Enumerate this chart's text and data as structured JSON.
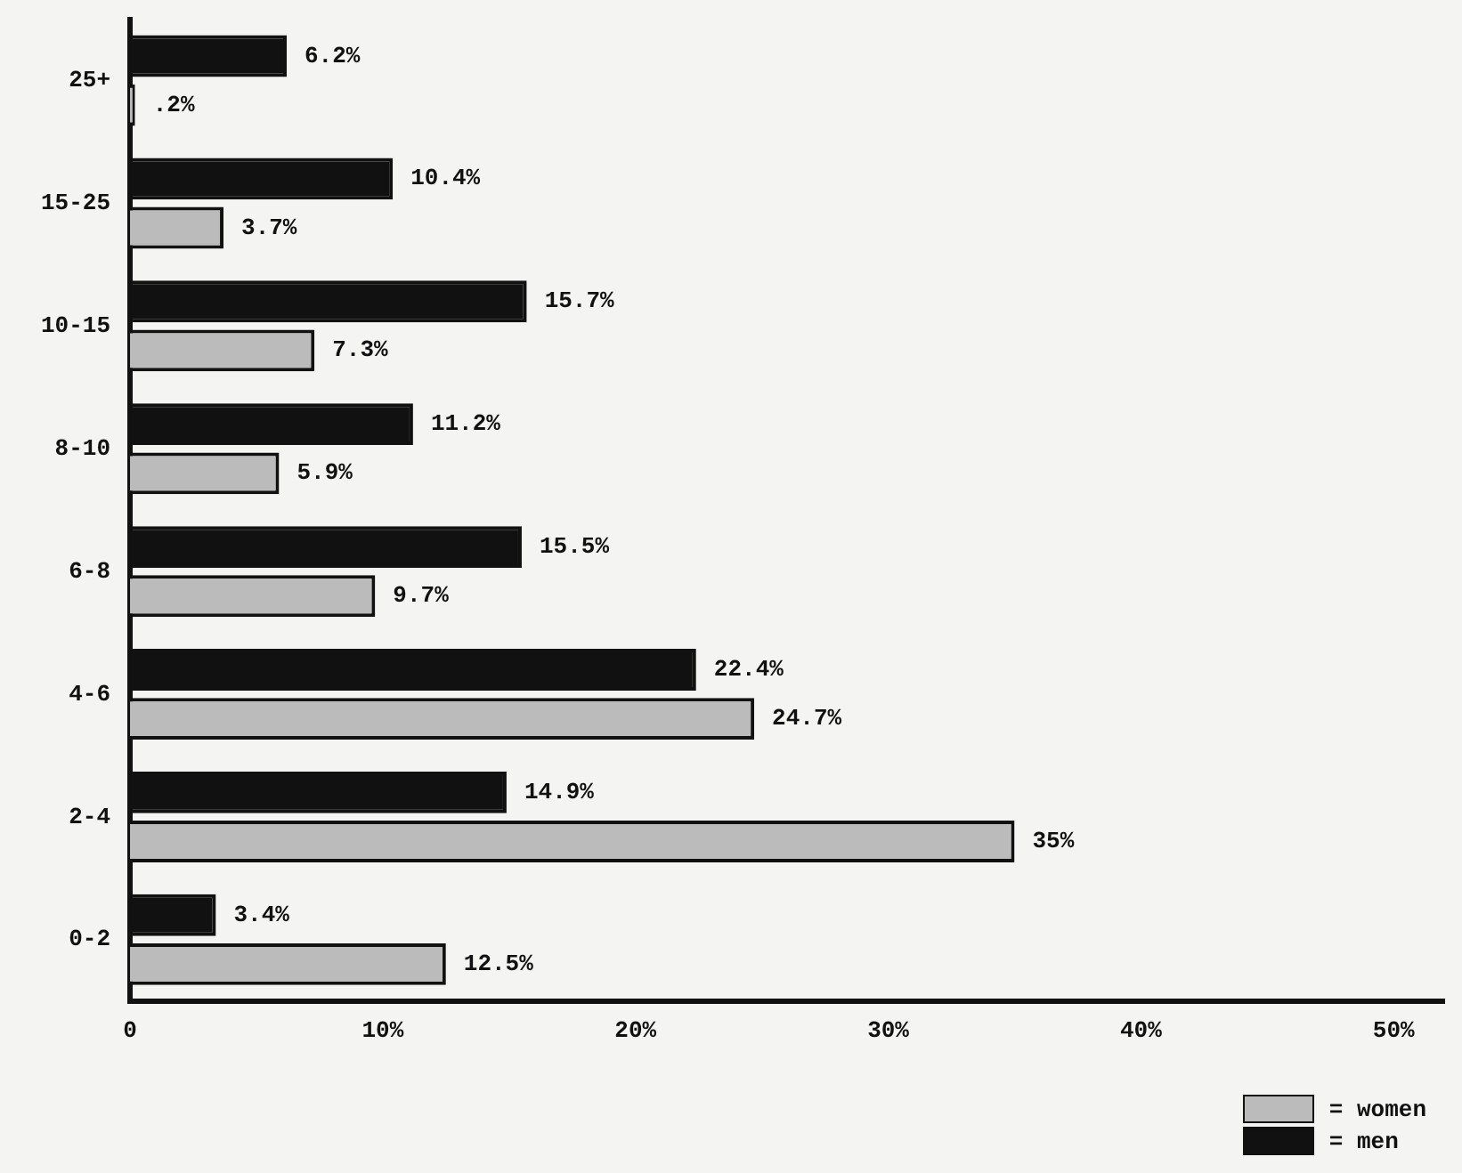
{
  "chart_data": {
    "type": "bar",
    "orientation": "horizontal",
    "categories": [
      "25+",
      "15-25",
      "10-15",
      "8-10",
      "6-8",
      "4-6",
      "2-4",
      "0-2"
    ],
    "series": [
      {
        "name": "= men",
        "color": "#111111",
        "values": [
          6.2,
          10.4,
          15.7,
          11.2,
          15.5,
          22.4,
          14.9,
          3.4
        ],
        "value_labels": [
          "6.2%",
          "10.4%",
          "15.7%",
          "11.2%",
          "15.5%",
          "22.4%",
          "14.9%",
          "3.4%"
        ]
      },
      {
        "name": "= women",
        "color": "#bbbbbb",
        "values": [
          0.2,
          3.7,
          7.3,
          5.9,
          9.7,
          24.7,
          35,
          12.5
        ],
        "value_labels": [
          ".2%",
          "3.7%",
          "7.3%",
          "5.9%",
          "9.7%",
          "24.7%",
          "35%",
          "12.5%"
        ]
      }
    ],
    "xlim": [
      0,
      52
    ],
    "xticks": [
      0,
      {
        "value": 10,
        "label": "10%"
      },
      {
        "value": 20,
        "label": "20%"
      },
      {
        "value": 30,
        "label": "30%"
      },
      {
        "value": 40,
        "label": "40%"
      },
      {
        "value": 50,
        "label": "50%"
      }
    ],
    "legend": "bottom right"
  }
}
